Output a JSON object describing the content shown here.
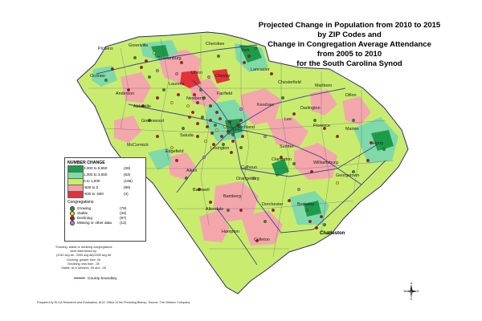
{
  "title_lines": [
    "Projected Change in Population from 2010 to 2015",
    "by ZIP Codes and",
    "Change in Congregation Average Attendance",
    "from 2005 to 2010",
    "for the South Carolina Synod"
  ],
  "legend": {
    "title": "NUMBER CHANGE",
    "classes": [
      {
        "range": "3,000 to 8,650",
        "count": "(28)",
        "color": "#1e9b4a"
      },
      {
        "range": "1,000 to 3,000",
        "count": "(53)",
        "color": "#7fd9a8"
      },
      {
        "range": "0 to 1,000",
        "count": "(198)",
        "color": "#c8ee6a"
      },
      {
        "range": "-500 to 0",
        "count": "(99)",
        "color": "#f2a3a8"
      },
      {
        "range": "-930 to -500",
        "count": "(3)",
        "color": "#e3323a"
      }
    ],
    "congregations_title": "Congregations",
    "congregations": [
      {
        "label": "Growing",
        "count": "(79)",
        "color": "#2f8f2f"
      },
      {
        "label": "Stable",
        "count": "(34)",
        "color": "#f1d41a"
      },
      {
        "label": "Declining",
        "count": "(97)",
        "color": "#c0141c"
      },
      {
        "label": "Missing or other data",
        "count": "(12)",
        "color": "#c77fc7"
      }
    ]
  },
  "footnote_lines": [
    "*Growing, stable or declining congregations",
    "were determined by:",
    "(2010 avg att - 2005 avg att)/2005 avg att",
    "Growing: greater than .05",
    "Declining: less than -.05",
    "Stable: at or between .05 and -.05"
  ],
  "county_boundary_label": "County boundary",
  "credits": "Prepared by ELCA Research and Evaluation, 8/12; Office of the Presiding Bishop. Source: The Nielsen Company",
  "compass": {
    "n": "N",
    "s": "S",
    "e": "E",
    "w": "W"
  },
  "place_labels": {
    "pickens": "Pickens",
    "greenville": "Greenville",
    "spartanburg": "Spartanburg",
    "cherokee": "Cherokee",
    "york": "York",
    "oconee": "Oconee",
    "anderson": "Anderson",
    "laurens": "Laurens",
    "union": "Union",
    "chester": "Chester",
    "lancaster": "Lancaster",
    "chesterfield": "Chesterfield",
    "marlboro": "Marlboro",
    "abbeville": "Abbeville",
    "greenwood": "Greenwood",
    "newberry": "Newberry",
    "fairfield": "Fairfield",
    "kershaw": "Kershaw",
    "darlington": "Darlington",
    "dillon": "Dillon",
    "mccormick": "McCormick",
    "saluda": "Saluda",
    "richland": "Richland",
    "lee": "Lee",
    "florence": "Florence",
    "marion": "Marion",
    "horry": "Horry",
    "edgefield": "Edgefield",
    "lexington": "Lexington",
    "sumter": "Sumter",
    "aiken": "Aiken",
    "calhoun": "Calhoun",
    "clarendon": "Clarendon",
    "williamsburg": "Williamsburg",
    "georgetown": "Georgetown",
    "orangeburg": "Orangeburg",
    "barnwell": "Barnwell",
    "bamberg": "Bamberg",
    "dorchester": "Dorchester",
    "berkeley": "Berkeley",
    "allendale": "Allendale",
    "colleton": "Colleton",
    "charleston": "Charleston",
    "hampton": "Hampton"
  }
}
